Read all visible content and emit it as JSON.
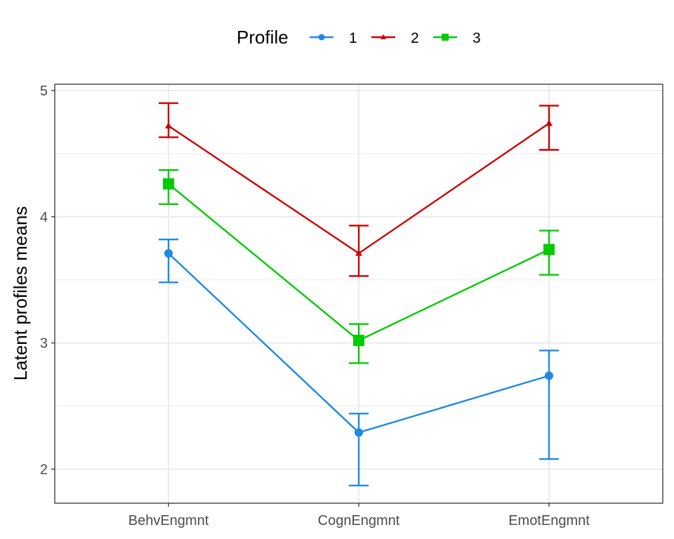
{
  "chart_data": {
    "type": "line",
    "title": "",
    "xlabel": "",
    "ylabel": "Latent profiles means",
    "categories": [
      "BehvEngmnt",
      "CognEngmnt",
      "EmotEngmnt"
    ],
    "ylim": [
      1.73,
      5.05
    ],
    "yticks": [
      2,
      3,
      4,
      5
    ],
    "grid": true,
    "legend": {
      "title": "Profile",
      "position": "top"
    },
    "series": [
      {
        "name": "1",
        "color": "#1e88e5",
        "marker": "circle",
        "values": [
          3.71,
          2.29,
          2.74
        ],
        "error_low": [
          3.48,
          1.87,
          2.08
        ],
        "error_high": [
          3.82,
          2.44,
          2.94
        ]
      },
      {
        "name": "2",
        "color": "#cc0000",
        "marker": "triangle",
        "values": [
          4.72,
          3.71,
          4.74
        ],
        "error_low": [
          4.63,
          3.53,
          4.53
        ],
        "error_high": [
          4.9,
          3.93,
          4.88
        ]
      },
      {
        "name": "3",
        "color": "#00cc00",
        "marker": "square",
        "values": [
          4.26,
          3.02,
          3.74
        ],
        "error_low": [
          4.1,
          2.84,
          3.54
        ],
        "error_high": [
          4.37,
          3.15,
          3.89
        ]
      }
    ]
  }
}
